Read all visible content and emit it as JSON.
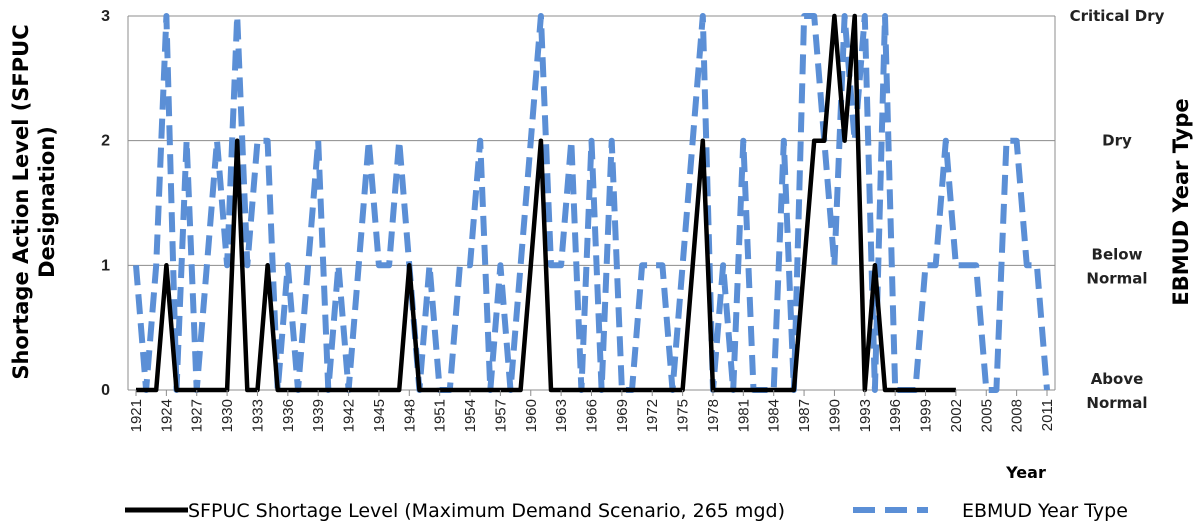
{
  "chart_data": {
    "type": "line",
    "xlabel": "Year",
    "ylabel_left": "Shortage Action Level (SFPUC Designation)",
    "ylabel_right": "EBMUD Year Type",
    "ylim": [
      0,
      3
    ],
    "y_ticks": [
      "0",
      "1",
      "2",
      "3"
    ],
    "y_right_ticks": [
      {
        "value": 0,
        "label_lines": [
          "Above",
          "Normal"
        ]
      },
      {
        "value": 1,
        "label_lines": [
          "Below",
          "Normal"
        ]
      },
      {
        "value": 2,
        "label_lines": [
          "Dry"
        ]
      },
      {
        "value": 3,
        "label_lines": [
          "Critical Dry"
        ]
      }
    ],
    "x_range": [
      1921,
      2011
    ],
    "x_tick_labels": [
      "1921",
      "1924",
      "1927",
      "1930",
      "1933",
      "1936",
      "1939",
      "1942",
      "1945",
      "1948",
      "1951",
      "1954",
      "1957",
      "1960",
      "1963",
      "1966",
      "1969",
      "1972",
      "1975",
      "1978",
      "1981",
      "1984",
      "1987",
      "1990",
      "1993",
      "1996",
      "1999",
      "2002",
      "2005",
      "2008",
      "2011"
    ],
    "grid": true,
    "legend_position": "bottom",
    "series": [
      {
        "name": "SFPUC Shortage Level (Maximum Demand Scenario, 265 mgd)",
        "color": "#000000",
        "style": "solid",
        "x": [
          1921,
          1922,
          1923,
          1924,
          1925,
          1926,
          1927,
          1928,
          1929,
          1930,
          1931,
          1932,
          1933,
          1934,
          1935,
          1936,
          1937,
          1938,
          1939,
          1940,
          1941,
          1942,
          1943,
          1944,
          1945,
          1946,
          1947,
          1948,
          1949,
          1950,
          1951,
          1952,
          1953,
          1954,
          1955,
          1956,
          1957,
          1958,
          1959,
          1960,
          1961,
          1962,
          1963,
          1964,
          1965,
          1966,
          1967,
          1968,
          1969,
          1970,
          1971,
          1972,
          1973,
          1974,
          1975,
          1976,
          1977,
          1978,
          1979,
          1980,
          1981,
          1982,
          1983,
          1984,
          1985,
          1986,
          1987,
          1988,
          1989,
          1990,
          1991,
          1992,
          1993,
          1994,
          1995,
          1996,
          1997,
          1998,
          1999,
          2000,
          2001,
          2002
        ],
        "values": [
          0,
          0,
          0,
          1,
          0,
          0,
          0,
          0,
          0,
          0,
          2,
          0,
          0,
          1,
          0,
          0,
          0,
          0,
          0,
          0,
          0,
          0,
          0,
          0,
          0,
          0,
          0,
          1,
          0,
          0,
          0,
          0,
          0,
          0,
          0,
          0,
          0,
          0,
          0,
          1,
          2,
          0,
          0,
          0,
          0,
          0,
          0,
          0,
          0,
          0,
          0,
          0,
          0,
          0,
          0,
          1,
          2,
          0,
          0,
          0,
          0,
          0,
          0,
          0,
          0,
          0,
          1,
          2,
          2,
          3,
          2,
          3,
          0,
          1,
          0,
          0,
          0,
          0,
          0,
          0,
          0,
          0
        ]
      },
      {
        "name": "EBMUD Year Type",
        "color": "#5b8fd6",
        "style": "dashed",
        "x": [
          1921,
          1922,
          1923,
          1924,
          1925,
          1926,
          1927,
          1928,
          1929,
          1930,
          1931,
          1932,
          1933,
          1934,
          1935,
          1936,
          1937,
          1938,
          1939,
          1940,
          1941,
          1942,
          1943,
          1944,
          1945,
          1946,
          1947,
          1948,
          1949,
          1950,
          1951,
          1952,
          1953,
          1954,
          1955,
          1956,
          1957,
          1958,
          1959,
          1960,
          1961,
          1962,
          1963,
          1964,
          1965,
          1966,
          1967,
          1968,
          1969,
          1970,
          1971,
          1972,
          1973,
          1974,
          1975,
          1976,
          1977,
          1978,
          1979,
          1980,
          1981,
          1982,
          1983,
          1984,
          1985,
          1986,
          1987,
          1988,
          1989,
          1990,
          1991,
          1992,
          1993,
          1994,
          1995,
          1996,
          1997,
          1998,
          1999,
          2000,
          2001,
          2002,
          2003,
          2004,
          2005,
          2006,
          2007,
          2008,
          2009,
          2010,
          2011
        ],
        "values": [
          1,
          0,
          1,
          3,
          0,
          2,
          0,
          1,
          2,
          1,
          3,
          1,
          2,
          2,
          0,
          1,
          0,
          1,
          2,
          0,
          1,
          0,
          1,
          2,
          1,
          1,
          2,
          1,
          0,
          1,
          0,
          0,
          1,
          1,
          2,
          0,
          1,
          0,
          1,
          2,
          3,
          1,
          1,
          2,
          0,
          2,
          0,
          2,
          0,
          0,
          1,
          1,
          1,
          0,
          1,
          2,
          3,
          0,
          1,
          0,
          2,
          0,
          0,
          0,
          2,
          0,
          3,
          3,
          2,
          1,
          3,
          2,
          3,
          0,
          3,
          0,
          0,
          0,
          1,
          1,
          2,
          1,
          1,
          1,
          0,
          0,
          2,
          2,
          1,
          1,
          0
        ]
      }
    ]
  }
}
